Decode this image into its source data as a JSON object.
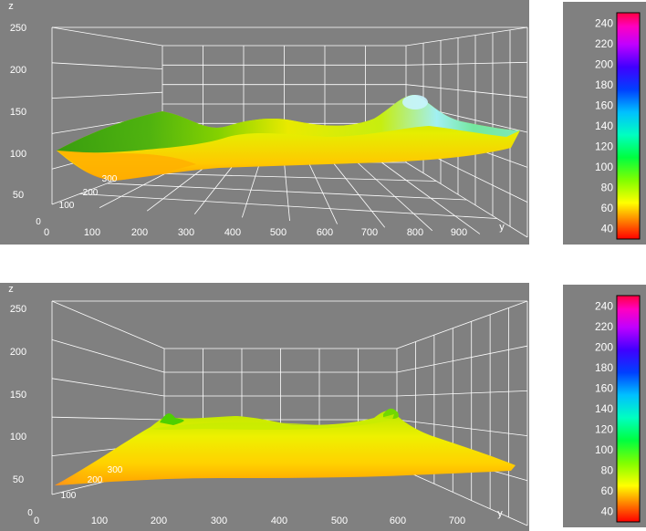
{
  "chart_data": [
    {
      "type": "surface3d",
      "axes": {
        "z_label": "z",
        "y_label": "y",
        "corner_label": "0"
      },
      "z_ticks": [
        "50",
        "100",
        "150",
        "200",
        "250"
      ],
      "x_ticks": [
        "100",
        "200",
        "300"
      ],
      "y_ticks": [
        "0",
        "100",
        "200",
        "300",
        "400",
        "500",
        "600",
        "700",
        "800",
        "900"
      ],
      "zlim": [
        0,
        250
      ],
      "colorbar": {
        "ticks": [
          "240",
          "220",
          "200",
          "180",
          "160",
          "140",
          "120",
          "100",
          "80",
          "60",
          "40"
        ],
        "range": [
          30,
          250
        ]
      },
      "colors": {
        "background": "#808080",
        "grid": "#ffffff"
      }
    },
    {
      "type": "surface3d",
      "axes": {
        "z_label": "z",
        "y_label": "y",
        "corner_label": "0"
      },
      "z_ticks": [
        "50",
        "100",
        "150",
        "200",
        "250"
      ],
      "x_ticks": [
        "100",
        "200",
        "300"
      ],
      "y_ticks": [
        "0",
        "100",
        "200",
        "300",
        "400",
        "500",
        "600",
        "700"
      ],
      "zlim": [
        0,
        250
      ],
      "colorbar": {
        "ticks": [
          "240",
          "220",
          "200",
          "180",
          "160",
          "140",
          "120",
          "100",
          "80",
          "60",
          "40"
        ],
        "range": [
          30,
          250
        ]
      },
      "colors": {
        "background": "#808080",
        "grid": "#ffffff"
      }
    }
  ]
}
